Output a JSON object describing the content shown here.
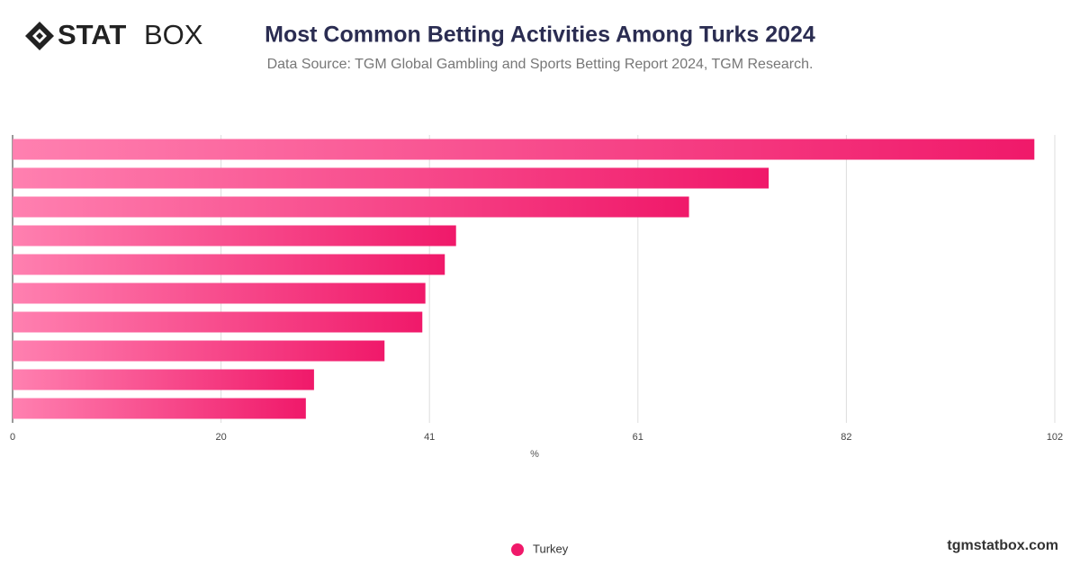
{
  "logo": {
    "bold": "STAT",
    "light": "BOX"
  },
  "footer": "tgmstatbox.com",
  "chart_data": {
    "type": "bar",
    "orientation": "horizontal",
    "title": "Most Common Betting Activities Among Turks 2024",
    "subtitle": "Data Source: TGM Global Gambling and Sports Betting Report 2024, TGM Research.",
    "x_label": "%",
    "categories": [
      null,
      null,
      null,
      null,
      null,
      null,
      null,
      null,
      null,
      null
    ],
    "series": [
      {
        "name": "Turkey",
        "color": "#f0196a",
        "values": [
          100,
          74,
          66.2,
          43.4,
          42.3,
          40.4,
          40.1,
          36.4,
          29.5,
          28.7
        ]
      }
    ],
    "xlim": [
      0,
      102
    ],
    "xticks": [
      0,
      {
        "value": 20.4,
        "label": "20"
      },
      {
        "value": 40.8,
        "label": "41"
      },
      {
        "value": 61.2,
        "label": "61"
      },
      {
        "value": 81.6,
        "label": "82"
      },
      102
    ],
    "grid": true,
    "legend": "bottom"
  }
}
